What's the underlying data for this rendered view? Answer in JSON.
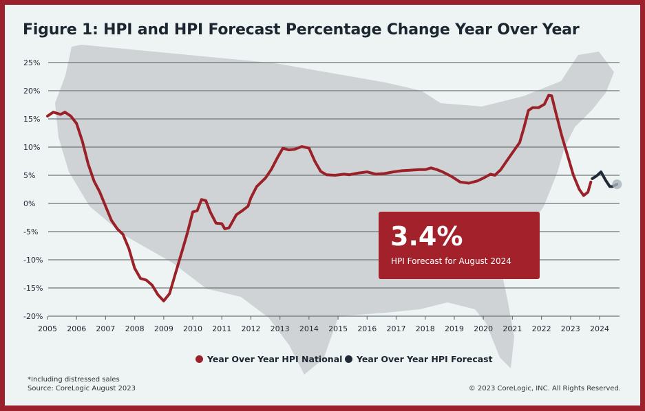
{
  "chart_data": {
    "type": "line",
    "title": "Figure 1: HPI and HPI Forecast Percentage Change Year Over Year",
    "xlabel": "",
    "ylabel": "",
    "xlim": [
      2005,
      2024.6
    ],
    "ylim": [
      -20,
      25
    ],
    "x_ticks": [
      "2005",
      "2006",
      "2007",
      "2008",
      "2009",
      "2010",
      "2011",
      "2012",
      "2013",
      "2014",
      "2015",
      "2016",
      "2017",
      "2018",
      "2019",
      "2020",
      "2021",
      "2022",
      "2023",
      "2024"
    ],
    "y_ticks": [
      "25%",
      "20%",
      "15%",
      "10%",
      "5%",
      "0%",
      "-5%",
      "-10%",
      "-15%",
      "-20%"
    ],
    "grid": "horizontal",
    "legend_placement": "bottom-center",
    "series": [
      {
        "name": "Year Over Year HPI National",
        "color": "#9b2129",
        "points": [
          [
            2005.0,
            15.5
          ],
          [
            2005.2,
            16.2
          ],
          [
            2005.45,
            15.8
          ],
          [
            2005.6,
            16.2
          ],
          [
            2005.8,
            15.5
          ],
          [
            2006.0,
            14.2
          ],
          [
            2006.2,
            11
          ],
          [
            2006.4,
            7
          ],
          [
            2006.6,
            4
          ],
          [
            2006.8,
            2
          ],
          [
            2007.0,
            -0.5
          ],
          [
            2007.2,
            -3
          ],
          [
            2007.4,
            -4.5
          ],
          [
            2007.6,
            -5.5
          ],
          [
            2007.8,
            -8
          ],
          [
            2008.0,
            -11.5
          ],
          [
            2008.2,
            -13.3
          ],
          [
            2008.4,
            -13.6
          ],
          [
            2008.6,
            -14.5
          ],
          [
            2008.8,
            -16.2
          ],
          [
            2009.0,
            -17.3
          ],
          [
            2009.2,
            -16
          ],
          [
            2009.4,
            -12.5
          ],
          [
            2009.6,
            -9
          ],
          [
            2009.8,
            -5.5
          ],
          [
            2010.0,
            -1.5
          ],
          [
            2010.15,
            -1.3
          ],
          [
            2010.3,
            0.7
          ],
          [
            2010.45,
            0.5
          ],
          [
            2010.6,
            -1.5
          ],
          [
            2010.8,
            -3.5
          ],
          [
            2011.0,
            -3.6
          ],
          [
            2011.1,
            -4.5
          ],
          [
            2011.25,
            -4.3
          ],
          [
            2011.5,
            -2
          ],
          [
            2011.7,
            -1.3
          ],
          [
            2011.9,
            -0.5
          ],
          [
            2012.0,
            1
          ],
          [
            2012.2,
            3
          ],
          [
            2012.5,
            4.5
          ],
          [
            2012.7,
            6
          ],
          [
            2012.9,
            8
          ],
          [
            2013.1,
            9.8
          ],
          [
            2013.3,
            9.5
          ],
          [
            2013.5,
            9.6
          ],
          [
            2013.75,
            10.1
          ],
          [
            2014.0,
            9.8
          ],
          [
            2014.2,
            7.5
          ],
          [
            2014.4,
            5.7
          ],
          [
            2014.6,
            5.1
          ],
          [
            2014.9,
            5.0
          ],
          [
            2015.2,
            5.2
          ],
          [
            2015.4,
            5.1
          ],
          [
            2015.7,
            5.4
          ],
          [
            2016.0,
            5.6
          ],
          [
            2016.3,
            5.2
          ],
          [
            2016.6,
            5.3
          ],
          [
            2016.9,
            5.6
          ],
          [
            2017.2,
            5.8
          ],
          [
            2017.5,
            5.9
          ],
          [
            2017.8,
            6.0
          ],
          [
            2018.0,
            6.0
          ],
          [
            2018.2,
            6.3
          ],
          [
            2018.4,
            6.0
          ],
          [
            2018.6,
            5.6
          ],
          [
            2018.9,
            4.8
          ],
          [
            2019.2,
            3.8
          ],
          [
            2019.5,
            3.6
          ],
          [
            2019.8,
            4.0
          ],
          [
            2020.0,
            4.5
          ],
          [
            2020.25,
            5.2
          ],
          [
            2020.4,
            5.0
          ],
          [
            2020.6,
            6.0
          ],
          [
            2020.8,
            7.5
          ],
          [
            2021.0,
            9.0
          ],
          [
            2021.25,
            10.8
          ],
          [
            2021.4,
            13.5
          ],
          [
            2021.55,
            16.5
          ],
          [
            2021.7,
            17.0
          ],
          [
            2021.9,
            17.0
          ],
          [
            2022.1,
            17.6
          ],
          [
            2022.25,
            19.2
          ],
          [
            2022.35,
            19.1
          ],
          [
            2022.5,
            16.0
          ],
          [
            2022.7,
            12.0
          ],
          [
            2022.9,
            8.5
          ],
          [
            2023.1,
            5.0
          ],
          [
            2023.3,
            2.5
          ],
          [
            2023.45,
            1.4
          ],
          [
            2023.6,
            2.0
          ],
          [
            2023.7,
            3.8
          ]
        ]
      },
      {
        "name": "Year Over Year HPI Forecast",
        "color": "#1f2a36",
        "points": [
          [
            2023.75,
            4.4
          ],
          [
            2023.9,
            4.9
          ],
          [
            2024.05,
            5.6
          ],
          [
            2024.2,
            4.2
          ],
          [
            2024.35,
            3.0
          ],
          [
            2024.45,
            3.0
          ],
          [
            2024.6,
            3.4
          ]
        ]
      }
    ],
    "annotation": {
      "value": "3.4%",
      "label": "HPI Forecast for August 2024"
    }
  },
  "colors": {
    "border": "#9b222c",
    "background": "#eef3f4",
    "map": "#d0d3d5",
    "callout": "#a3212b"
  },
  "footer": {
    "note": "*Including distressed sales",
    "source": "Source: CoreLogic August 2023",
    "copyright": "© 2023 CoreLogic, INC. All Rights Reserved."
  }
}
